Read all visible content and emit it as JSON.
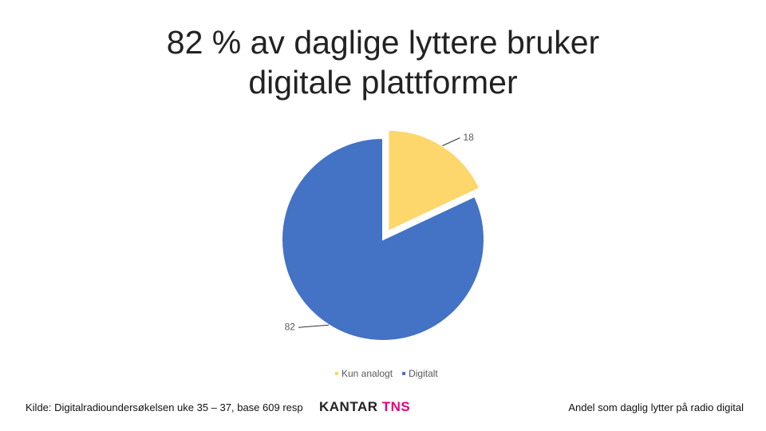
{
  "chart_data": {
    "type": "pie",
    "title": "82 % av daglige lyttere bruker digitale plattformer",
    "categories": [
      "Kun analogt",
      "Digitalt"
    ],
    "values": [
      18,
      82
    ],
    "colors": [
      "#fdd76c",
      "#4472c4"
    ],
    "exploded": [
      true,
      false
    ],
    "legend": "bottom"
  },
  "footer": {
    "source": "Kilde: Digitalradioundersøkelsen uke 35 – 37, base 609 resp",
    "logo_left": "KANTAR",
    "logo_right": "TNS",
    "note": "Andel som daglig lytter på radio digital"
  }
}
